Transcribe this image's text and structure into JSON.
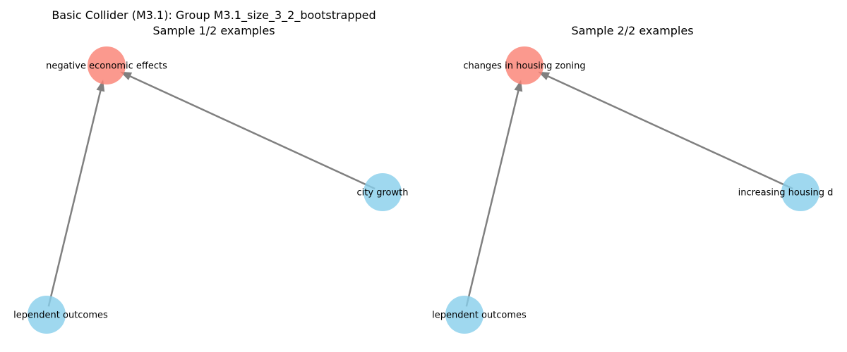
{
  "colors": {
    "collider_node": "#fa8072",
    "cause_node": "#87ceeb",
    "edge": "#808080",
    "text": "#000000",
    "background": "#ffffff"
  },
  "panels": [
    {
      "title_line1": "Basic Collider (M3.1): Group M3.1_size_3_2_bootstrapped",
      "title_line2": "Sample 1/2 examples",
      "nodes": {
        "collider": {
          "label": "negative economic effects",
          "role": "collider"
        },
        "right": {
          "label": "city growth",
          "role": "cause"
        },
        "bottom": {
          "label": "lependent outcomes",
          "role": "cause"
        }
      },
      "edges": [
        {
          "from": "bottom",
          "to": "collider"
        },
        {
          "from": "right",
          "to": "collider"
        }
      ]
    },
    {
      "title_line1": "",
      "title_line2": "Sample 2/2 examples",
      "nodes": {
        "collider": {
          "label": "changes in housing zoning",
          "role": "collider"
        },
        "right": {
          "label": "increasing housing d",
          "role": "cause"
        },
        "bottom": {
          "label": "lependent outcomes",
          "role": "cause"
        }
      },
      "edges": [
        {
          "from": "bottom",
          "to": "collider"
        },
        {
          "from": "right",
          "to": "collider"
        }
      ]
    }
  ]
}
